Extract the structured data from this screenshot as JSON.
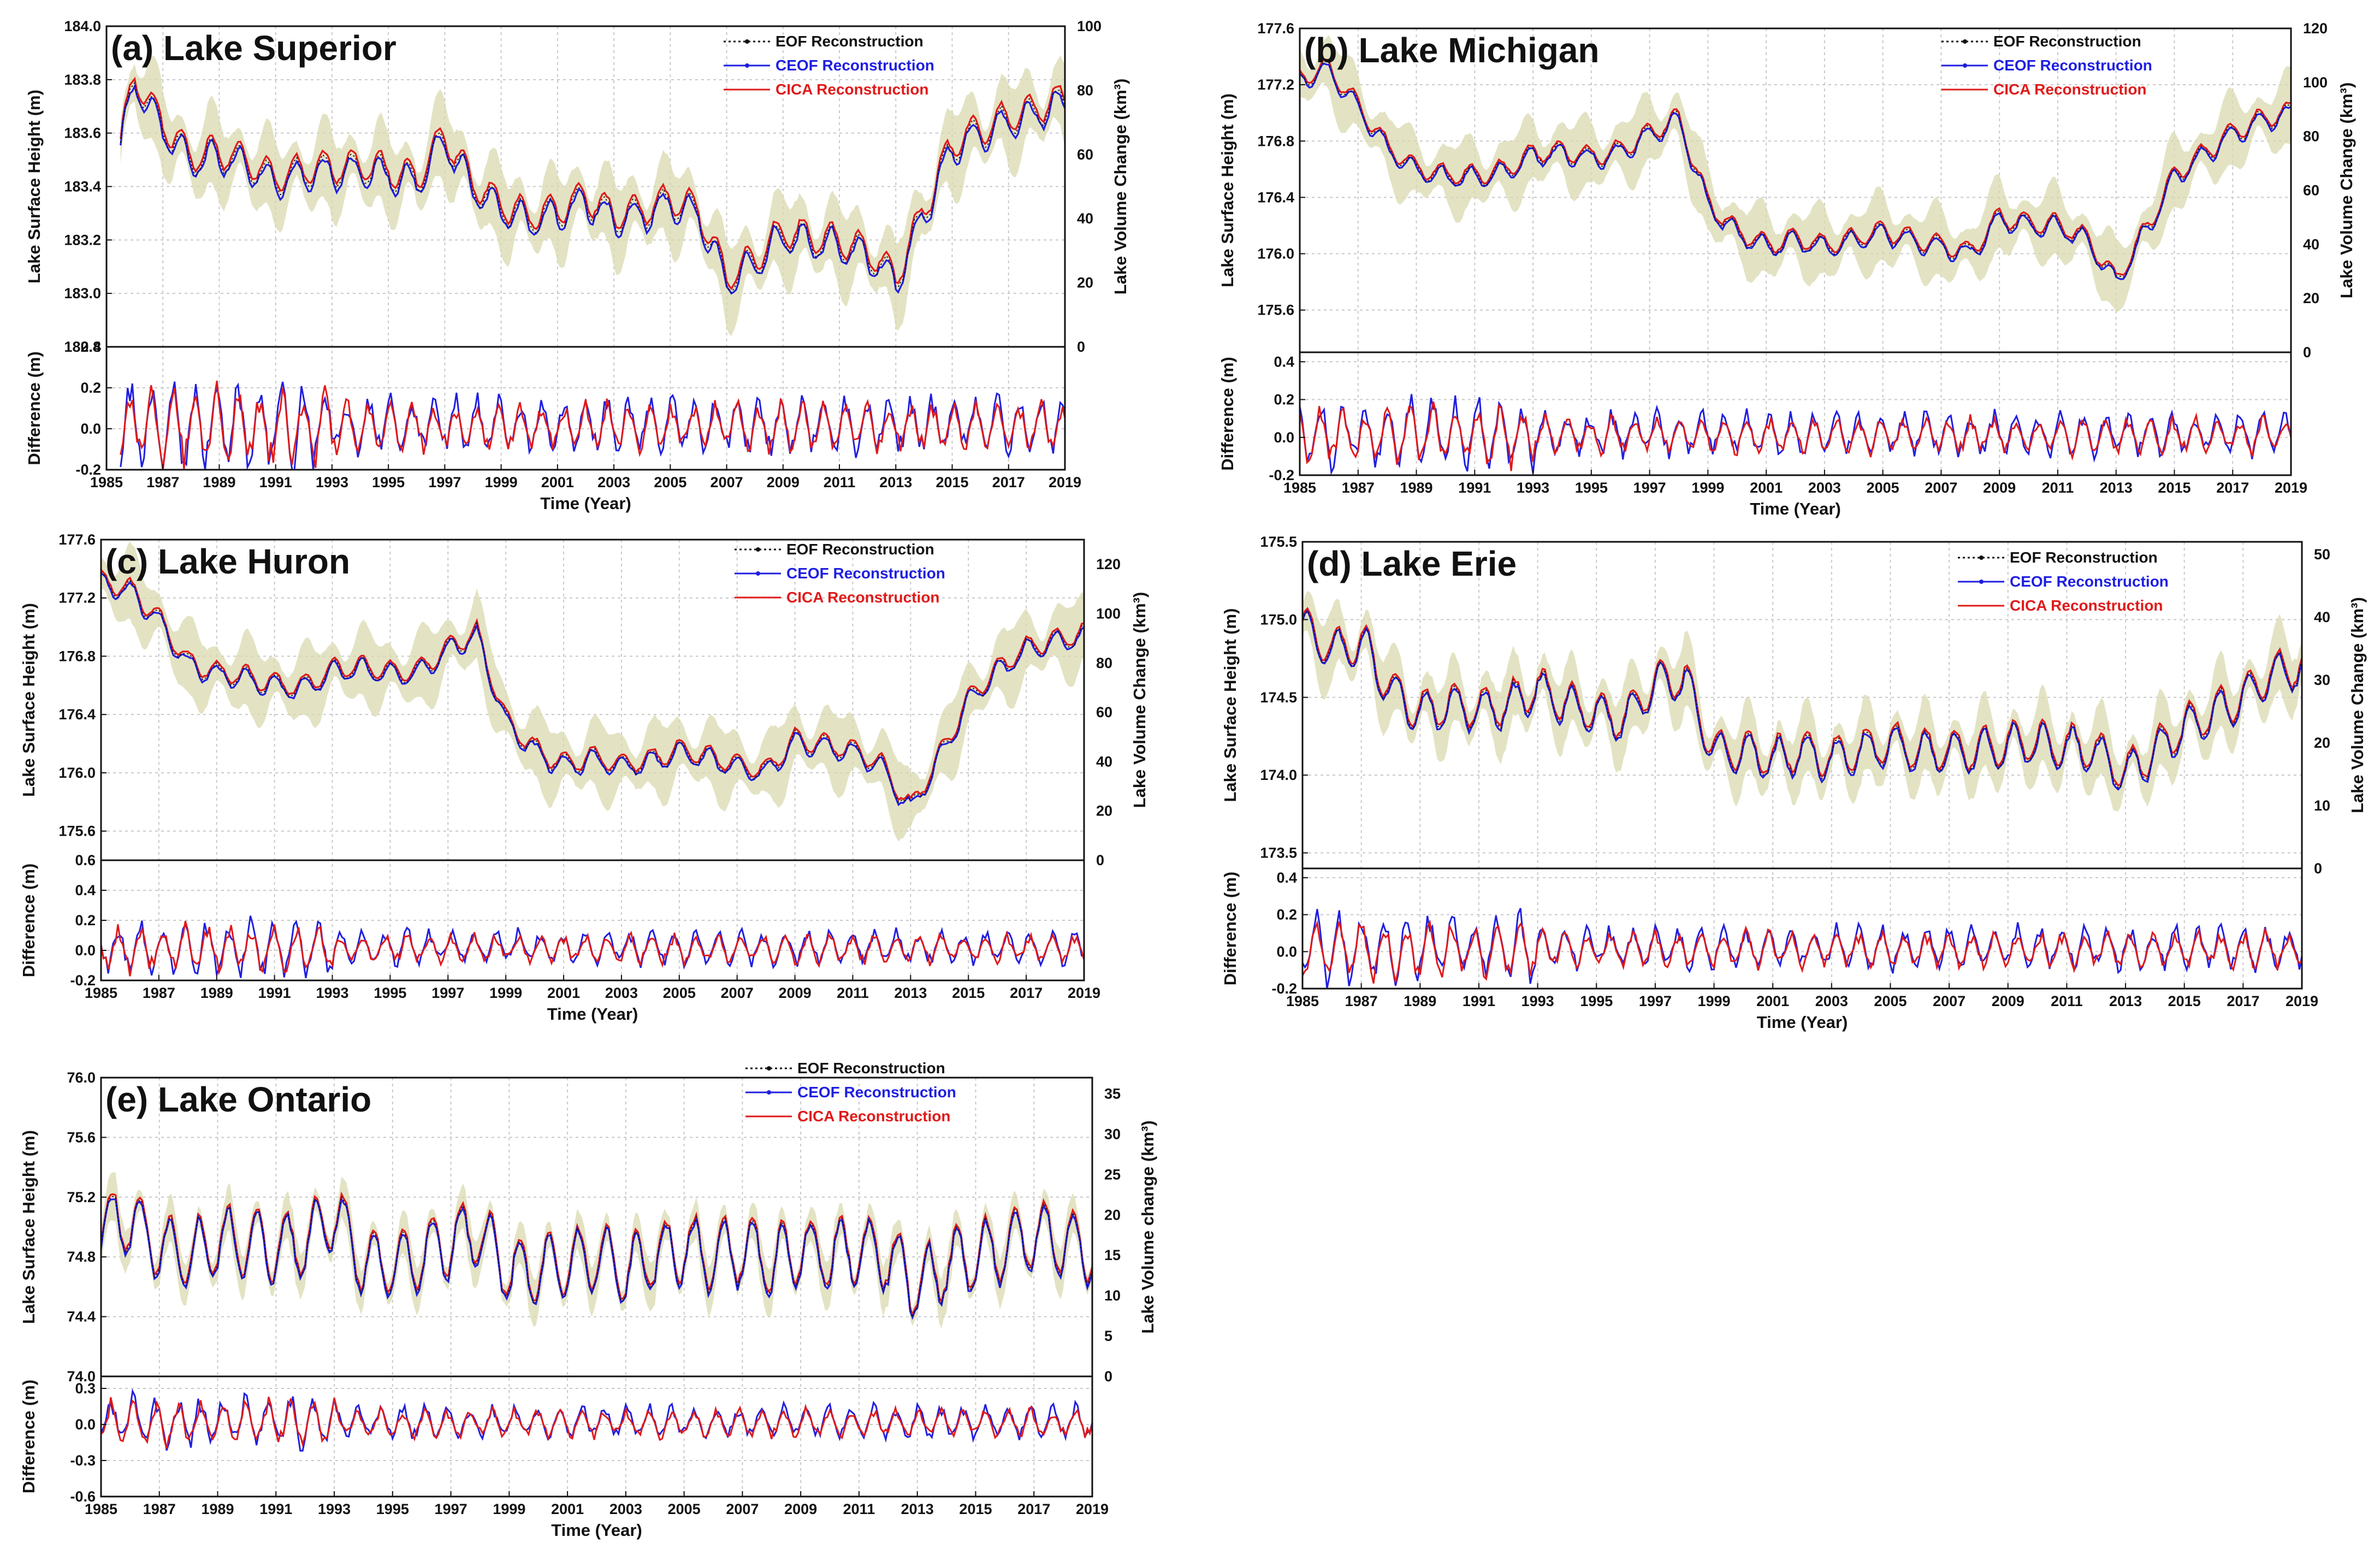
{
  "figure": {
    "legend_labels": [
      "EOF Reconstruction",
      "CEOF Reconstruction",
      "CICA Reconstruction"
    ],
    "colors": {
      "eof": "#111111",
      "ceof": "#1f1fe0",
      "cica": "#e01a1a",
      "band": "#d9d9b0",
      "grid": "#c8c8c8"
    }
  },
  "chart_data": [
    {
      "type": "line",
      "id": "a",
      "title": "(a) Lake Superior",
      "ylabel": "Lake Surface Height (m)",
      "y2label": "Lake Volume Change (km³)",
      "difflabel": "Difference (m)",
      "xlabel": "Time (Year)",
      "xlim": [
        1985,
        2019
      ],
      "xticks": [
        "1985",
        "1987",
        "1989",
        "1991",
        "1993",
        "1995",
        "1997",
        "1999",
        "2001",
        "2003",
        "2005",
        "2007",
        "2009",
        "2011",
        "2013",
        "2015",
        "2017",
        "2019"
      ],
      "ylim": [
        182.8,
        184.0
      ],
      "yticks": [
        "184.0",
        "183.8",
        "183.6",
        "183.4",
        "183.2",
        "183.0",
        "182.8"
      ],
      "y2lim": [
        0,
        100
      ],
      "y2ticks": [
        "100",
        "80",
        "60",
        "40",
        "20",
        "0"
      ],
      "dlim": [
        -0.2,
        0.4
      ],
      "dticks": [
        "0.4",
        "0.2",
        "0.0",
        "-0.2"
      ],
      "band": 0.15,
      "x": [
        1985.5,
        1986,
        1987,
        1988,
        1989,
        1990,
        1991,
        1992,
        1993,
        1994,
        1995,
        1996,
        1997,
        1998,
        1999,
        2000,
        2001,
        2002,
        2003,
        2004,
        2005,
        2006,
        2007,
        2008,
        2009,
        2010,
        2011,
        2012,
        2013,
        2014,
        2015,
        2016,
        2017,
        2018,
        2019
      ],
      "level": [
        183.55,
        183.8,
        183.62,
        183.5,
        183.52,
        183.48,
        183.42,
        183.45,
        183.46,
        183.47,
        183.45,
        183.42,
        183.58,
        183.4,
        183.32,
        183.28,
        183.3,
        183.35,
        183.28,
        183.3,
        183.34,
        183.3,
        183.05,
        183.12,
        183.22,
        183.2,
        183.18,
        183.15,
        183.05,
        183.3,
        183.55,
        183.6,
        183.65,
        183.68,
        183.72
      ],
      "amp": 0.06,
      "diff_amp": 0.12,
      "seed": 1
    },
    {
      "type": "line",
      "id": "b",
      "title": "(b) Lake Michigan",
      "ylabel": "Lake Surface Height (m)",
      "y2label": "Lake Volume Change (km³)",
      "difflabel": "Difference (m)",
      "xlabel": "Time (Year)",
      "xlim": [
        1985,
        2019
      ],
      "xticks": [
        "1985",
        "1987",
        "1989",
        "1991",
        "1993",
        "1995",
        "1997",
        "1999",
        "2001",
        "2003",
        "2005",
        "2007",
        "2009",
        "2011",
        "2013",
        "2015",
        "2017",
        "2019"
      ],
      "ylim": [
        175.3,
        177.6
      ],
      "yticks": [
        "177.6",
        "177.2",
        "176.8",
        "176.4",
        "176.0",
        "175.6"
      ],
      "y2lim": [
        0,
        120
      ],
      "y2ticks": [
        "120",
        "100",
        "80",
        "60",
        "40",
        "20",
        "0"
      ],
      "dlim": [
        -0.2,
        0.45
      ],
      "dticks": [
        "0.4",
        "0.2",
        "0.0",
        "-0.2"
      ],
      "band": 0.25,
      "x": [
        1985,
        1986,
        1987,
        1988,
        1989,
        1990,
        1991,
        1992,
        1993,
        1994,
        1995,
        1996,
        1997,
        1998,
        1999,
        2000,
        2001,
        2002,
        2003,
        2004,
        2005,
        2006,
        2007,
        2008,
        2009,
        2010,
        2011,
        2012,
        2013,
        2014,
        2015,
        2016,
        2017,
        2018,
        2019
      ],
      "level": [
        177.25,
        177.3,
        177.05,
        176.75,
        176.6,
        176.55,
        176.55,
        176.58,
        176.7,
        176.72,
        176.68,
        176.72,
        176.85,
        176.95,
        176.35,
        176.15,
        176.05,
        176.1,
        176.05,
        176.1,
        176.15,
        176.1,
        176.05,
        176.0,
        176.25,
        176.2,
        176.2,
        176.1,
        175.8,
        176.15,
        176.55,
        176.7,
        176.85,
        176.95,
        177.0
      ],
      "amp": 0.07,
      "diff_amp": 0.1,
      "seed": 2
    },
    {
      "type": "line",
      "id": "c",
      "title": "(c) Lake Huron",
      "ylabel": "Lake Surface Height (m)",
      "y2label": "Lake Volume Change (km³)",
      "difflabel": "Difference (m)",
      "xlabel": "Time (Year)",
      "xlim": [
        1985,
        2019
      ],
      "xticks": [
        "1985",
        "1987",
        "1989",
        "1991",
        "1993",
        "1995",
        "1997",
        "1999",
        "2001",
        "2003",
        "2005",
        "2007",
        "2009",
        "2011",
        "2013",
        "2015",
        "2017",
        "2019"
      ],
      "ylim": [
        175.4,
        177.6
      ],
      "yticks": [
        "177.6",
        "177.2",
        "176.8",
        "176.4",
        "176.0",
        "175.6"
      ],
      "y2lim": [
        0,
        130
      ],
      "y2ticks": [
        "120",
        "100",
        "80",
        "60",
        "40",
        "20",
        "0"
      ],
      "dlim": [
        -0.2,
        0.6
      ],
      "dticks": [
        "0.6",
        "0.4",
        "0.2",
        "0.0",
        "-0.2"
      ],
      "band": 0.25,
      "x": [
        1985,
        1986,
        1987,
        1988,
        1989,
        1990,
        1991,
        1992,
        1993,
        1994,
        1995,
        1996,
        1997,
        1998,
        1999,
        2000,
        2001,
        2002,
        2003,
        2004,
        2005,
        2006,
        2007,
        2008,
        2009,
        2010,
        2011,
        2012,
        2013,
        2014,
        2015,
        2016,
        2017,
        2018,
        2019
      ],
      "level": [
        177.3,
        177.25,
        177.05,
        176.75,
        176.68,
        176.65,
        176.6,
        176.58,
        176.7,
        176.72,
        176.68,
        176.7,
        176.85,
        176.95,
        176.35,
        176.15,
        176.05,
        176.1,
        176.05,
        176.08,
        176.15,
        176.1,
        176.05,
        176.0,
        176.22,
        176.18,
        176.15,
        176.05,
        175.75,
        176.1,
        176.5,
        176.7,
        176.85,
        176.9,
        176.95
      ],
      "amp": 0.07,
      "diff_amp": 0.1,
      "seed": 3
    },
    {
      "type": "line",
      "id": "d",
      "title": "(d) Lake Erie",
      "ylabel": "Lake Surface Height (m)",
      "y2label": "Lake Volume Change (km³)",
      "difflabel": "Difference (m)",
      "xlabel": "Time (Year)",
      "xlim": [
        1985,
        2019
      ],
      "xticks": [
        "1985",
        "1987",
        "1989",
        "1991",
        "1993",
        "1995",
        "1997",
        "1999",
        "2001",
        "2003",
        "2005",
        "2007",
        "2009",
        "2011",
        "2013",
        "2015",
        "2017",
        "2019"
      ],
      "ylim": [
        173.4,
        175.5
      ],
      "yticks": [
        "175.5",
        "175.0",
        "174.5",
        "174.0",
        "173.5"
      ],
      "y2lim": [
        0,
        52
      ],
      "y2ticks": [
        "50",
        "40",
        "30",
        "20",
        "10",
        "0"
      ],
      "dlim": [
        -0.2,
        0.45
      ],
      "dticks": [
        "0.4",
        "0.2",
        "0.0",
        "-0.2"
      ],
      "band": 0.22,
      "x": [
        1985,
        1986,
        1987,
        1988,
        1989,
        1990,
        1991,
        1992,
        1993,
        1994,
        1995,
        1996,
        1997,
        1998,
        1999,
        2000,
        2001,
        2002,
        2003,
        2004,
        2005,
        2006,
        2007,
        2008,
        2009,
        2010,
        2011,
        2012,
        2013,
        2014,
        2015,
        2016,
        2017,
        2018,
        2019
      ],
      "level": [
        174.95,
        174.8,
        174.85,
        174.55,
        174.4,
        174.45,
        174.42,
        174.45,
        174.55,
        174.45,
        174.4,
        174.35,
        174.6,
        174.62,
        174.15,
        174.15,
        174.1,
        174.15,
        174.1,
        174.15,
        174.2,
        174.15,
        174.15,
        174.15,
        174.2,
        174.2,
        174.18,
        174.15,
        174.0,
        174.15,
        174.3,
        174.4,
        174.5,
        174.65,
        174.7
      ],
      "amp": 0.13,
      "diff_amp": 0.1,
      "seed": 4
    },
    {
      "type": "line",
      "id": "e",
      "title": "(e) Lake Ontario",
      "ylabel": "Lake Surface Height (m)",
      "y2label": "Lake Volume change (km³)",
      "difflabel": "Difference (m)",
      "xlabel": "Time (Year)",
      "xlim": [
        1985,
        2019
      ],
      "xticks": [
        "1985",
        "1987",
        "1989",
        "1991",
        "1993",
        "1995",
        "1997",
        "1999",
        "2001",
        "2003",
        "2005",
        "2007",
        "2009",
        "2011",
        "2013",
        "2015",
        "2017",
        "2019"
      ],
      "ylim": [
        74.0,
        76.0
      ],
      "yticks": [
        "76.0",
        "75.6",
        "75.2",
        "74.8",
        "74.4",
        "74.0"
      ],
      "y2lim": [
        0,
        37
      ],
      "y2ticks": [
        "35",
        "30",
        "25",
        "20",
        "15",
        "10",
        "5",
        "0"
      ],
      "dlim": [
        -0.6,
        0.4
      ],
      "dticks": [
        "0.3",
        "0.0",
        "-0.3",
        "-0.6"
      ],
      "band": 0.15,
      "x": [
        1985,
        1986,
        1987,
        1988,
        1989,
        1990,
        1991,
        1992,
        1993,
        1994,
        1995,
        1996,
        1997,
        1998,
        1999,
        2000,
        2001,
        2002,
        2003,
        2004,
        2005,
        2006,
        2007,
        2008,
        2009,
        2010,
        2011,
        2012,
        2013,
        2014,
        2015,
        2016,
        2017,
        2018,
        2019
      ],
      "level": [
        75.0,
        75.05,
        74.85,
        74.8,
        74.9,
        74.9,
        74.85,
        74.9,
        75.1,
        74.75,
        74.75,
        74.8,
        74.9,
        74.95,
        74.7,
        74.7,
        74.75,
        74.8,
        74.7,
        74.8,
        74.85,
        74.8,
        74.85,
        74.75,
        74.85,
        74.8,
        74.85,
        74.8,
        74.6,
        74.75,
        74.8,
        74.85,
        74.95,
        74.9,
        74.85
      ],
      "amp": 0.22,
      "diff_amp": 0.12,
      "seed": 5
    }
  ]
}
